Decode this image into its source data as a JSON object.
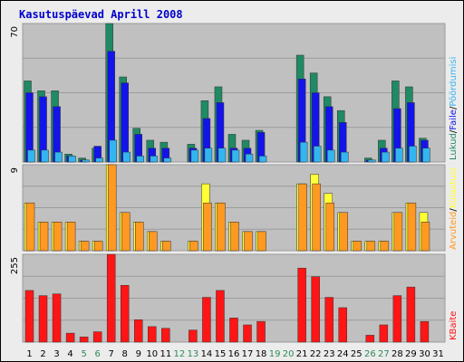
{
  "title": "Kasutuspäevad Aprill 2008",
  "colors": {
    "plot_bg": "#c0c0c0",
    "lukud": "#1f8a63",
    "faile": "#1414ea",
    "poordumisi": "#33b5f0",
    "kulastused": "#ffff33",
    "arvuteid": "#ff9922",
    "kbaite": "#ff1515",
    "weekday": "#000000",
    "weekend": "#2e8b57"
  },
  "chart_data": [
    {
      "type": "bar",
      "panel": "top",
      "ymax_label": "70",
      "ylim": [
        0,
        70
      ],
      "categories": [
        "1",
        "2",
        "3",
        "4",
        "5",
        "6",
        "7",
        "8",
        "9",
        "10",
        "11",
        "12",
        "13",
        "14",
        "15",
        "16",
        "17",
        "18",
        "19",
        "20",
        "21",
        "22",
        "23",
        "24",
        "25",
        "26",
        "27",
        "28",
        "29",
        "30",
        "31"
      ],
      "weekend_days": [
        "5",
        "6",
        "12",
        "13",
        "19",
        "20",
        "26",
        "27"
      ],
      "legend": [
        "Lukud",
        "Faile",
        "Pöördumisi"
      ],
      "series": [
        {
          "name": "Lukud",
          "values": [
            41,
            36,
            36,
            4,
            2,
            7,
            70,
            43,
            17,
            11,
            10,
            0,
            9,
            31,
            38,
            14,
            11,
            16,
            0,
            0,
            54,
            45,
            33,
            26,
            0,
            2,
            11,
            41,
            38,
            12,
            0
          ]
        },
        {
          "name": "Faile",
          "values": [
            35,
            33,
            28,
            3,
            1,
            8,
            56,
            40,
            14,
            7,
            7,
            0,
            7,
            22,
            30,
            7,
            7,
            15,
            0,
            0,
            42,
            35,
            28,
            20,
            0,
            1,
            7,
            27,
            30,
            11,
            0
          ]
        },
        {
          "name": "Pöördumisi",
          "values": [
            6,
            6,
            5,
            3,
            1,
            2,
            11,
            5,
            3,
            3,
            2,
            0,
            6,
            7,
            7,
            6,
            4,
            3,
            0,
            0,
            10,
            8,
            6,
            5,
            0,
            1,
            5,
            7,
            8,
            7,
            0
          ]
        }
      ]
    },
    {
      "type": "bar",
      "panel": "middle",
      "ymax_label": "9",
      "ylim": [
        0,
        9
      ],
      "categories": [
        "1",
        "2",
        "3",
        "4",
        "5",
        "6",
        "7",
        "8",
        "9",
        "10",
        "11",
        "12",
        "13",
        "14",
        "15",
        "16",
        "17",
        "18",
        "19",
        "20",
        "21",
        "22",
        "23",
        "24",
        "25",
        "26",
        "27",
        "28",
        "29",
        "30",
        "31"
      ],
      "legend": [
        "Arvuteid",
        "Külastusi"
      ],
      "series": [
        {
          "name": "Külastusi",
          "values": [
            5,
            3,
            3,
            3,
            1,
            1,
            9,
            4,
            3,
            2,
            1,
            0,
            1,
            7,
            5,
            3,
            2,
            2,
            0,
            0,
            7,
            8,
            6,
            4,
            1,
            1,
            1,
            4,
            5,
            4,
            0
          ]
        },
        {
          "name": "Arvuteid",
          "values": [
            5,
            3,
            3,
            3,
            1,
            1,
            9,
            4,
            3,
            2,
            1,
            0,
            1,
            5,
            5,
            3,
            2,
            2,
            0,
            0,
            7,
            7,
            5,
            4,
            1,
            1,
            1,
            4,
            5,
            3,
            0
          ]
        }
      ]
    },
    {
      "type": "bar",
      "panel": "bottom",
      "ymax_label": "255",
      "ylim": [
        0,
        255
      ],
      "categories": [
        "1",
        "2",
        "3",
        "4",
        "5",
        "6",
        "7",
        "8",
        "9",
        "10",
        "11",
        "12",
        "13",
        "14",
        "15",
        "16",
        "17",
        "18",
        "19",
        "20",
        "21",
        "22",
        "23",
        "24",
        "25",
        "26",
        "27",
        "28",
        "29",
        "30",
        "31"
      ],
      "legend": [
        "KBaite"
      ],
      "series": [
        {
          "name": "KBaite",
          "values": [
            150,
            135,
            140,
            26,
            15,
            30,
            255,
            165,
            65,
            45,
            40,
            0,
            35,
            130,
            150,
            70,
            50,
            60,
            0,
            0,
            215,
            190,
            130,
            100,
            0,
            20,
            50,
            135,
            160,
            60,
            0
          ]
        }
      ]
    }
  ],
  "y_axis_labels": {
    "top": "70",
    "middle": "9",
    "bottom": "255"
  },
  "legend_right": {
    "top": [
      {
        "label": "Lukud",
        "color_key": "lukud"
      },
      {
        "label": "/",
        "color_key": "weekday"
      },
      {
        "label": "Faile",
        "color_key": "faile"
      },
      {
        "label": "/",
        "color_key": "weekday"
      },
      {
        "label": "Pöördumisi",
        "color_key": "poordumisi"
      }
    ],
    "middle": [
      {
        "label": "Arvuteid",
        "color_key": "arvuteid"
      },
      {
        "label": "/",
        "color_key": "weekday"
      },
      {
        "label": "Külastusi",
        "color_key": "kulastused"
      }
    ],
    "bottom": [
      {
        "label": "KBaite",
        "color_key": "kbaite"
      }
    ]
  }
}
